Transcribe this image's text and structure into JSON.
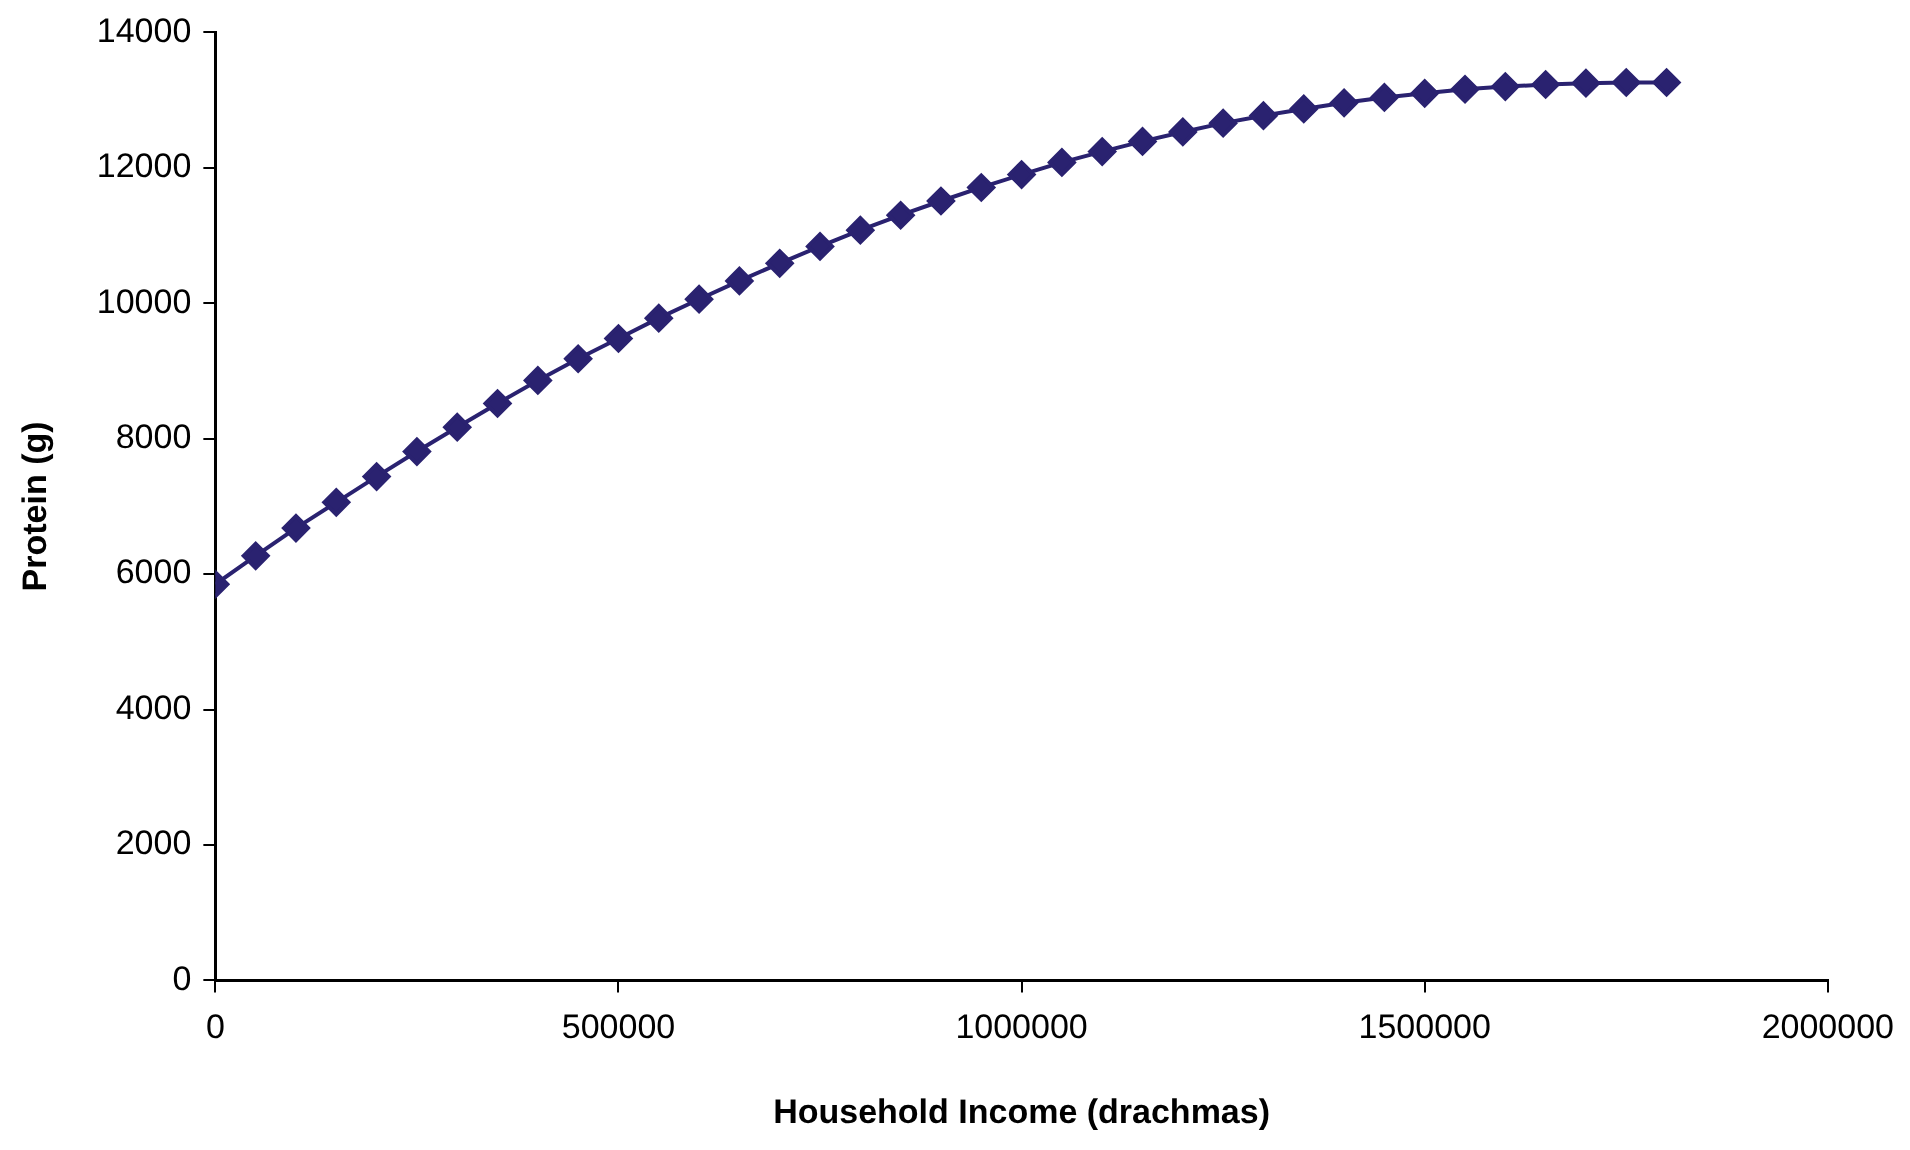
{
  "chart_data": {
    "type": "line",
    "xlabel": "Household Income (drachmas)",
    "ylabel": "Protein (g)",
    "x": [
      0,
      50000,
      100000,
      150000,
      200000,
      250000,
      300000,
      350000,
      400000,
      450000,
      500000,
      550000,
      600000,
      650000,
      700000,
      750000,
      800000,
      850000,
      900000,
      950000,
      1000000,
      1050000,
      1100000,
      1150000,
      1200000,
      1250000,
      1300000,
      1350000,
      1400000,
      1450000,
      1500000,
      1550000,
      1600000,
      1650000,
      1700000,
      1750000,
      1800000
    ],
    "series": [
      {
        "color": "#2a2270",
        "values": [
          5850,
          6270,
          6680,
          7060,
          7440,
          7810,
          8170,
          8520,
          8860,
          9180,
          9480,
          9780,
          10060,
          10330,
          10590,
          10840,
          11080,
          11300,
          11510,
          11710,
          11900,
          12080,
          12240,
          12390,
          12530,
          12660,
          12770,
          12870,
          12960,
          13040,
          13100,
          13160,
          13200,
          13230,
          13250,
          13260,
          13260
        ]
      }
    ],
    "xlim": [
      0,
      2000000
    ],
    "xticks": [
      0,
      500000,
      1000000,
      1500000,
      2000000
    ],
    "ylim": [
      0,
      14000
    ],
    "yticks": [
      0,
      2000,
      4000,
      6000,
      8000,
      10000,
      12000,
      14000
    ],
    "grid": false,
    "legend": false,
    "marker": "diamond",
    "line_style": "solid"
  }
}
